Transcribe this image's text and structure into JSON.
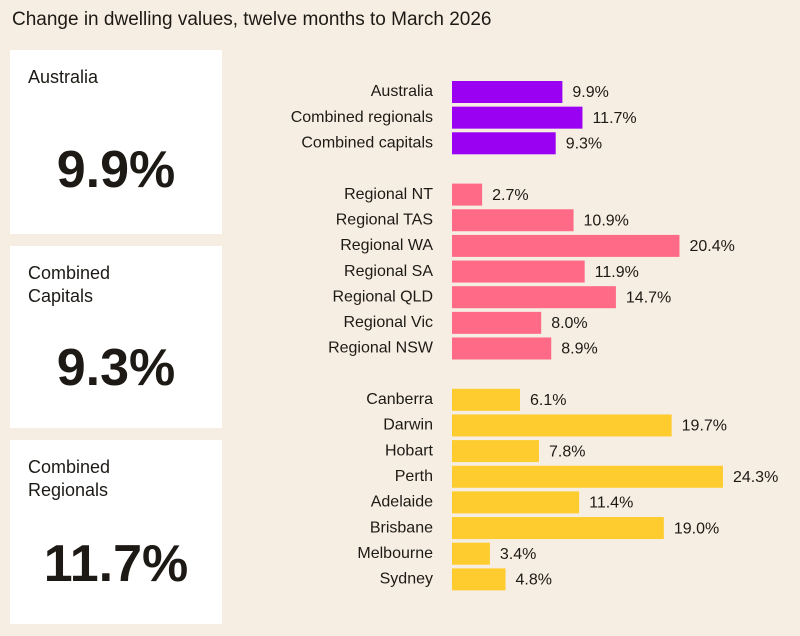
{
  "title": "Change in dwelling values, twelve months to March 2026",
  "cards": [
    {
      "label": "Australia",
      "value": "9.9%"
    },
    {
      "label": "Combined Capitals",
      "value": "9.3%"
    },
    {
      "label": "Combined Regionals",
      "value": "11.7%"
    }
  ],
  "chart_data": {
    "type": "bar",
    "orientation": "horizontal",
    "groups": [
      {
        "color": "#9a00f2",
        "categories": [
          "Australia",
          "Combined regionals",
          "Combined capitals"
        ],
        "values": [
          9.9,
          11.7,
          9.3
        ],
        "value_labels": [
          "9.9%",
          "11.7%",
          "9.3%"
        ]
      },
      {
        "color": "#ff6b86",
        "categories": [
          "Regional NT",
          "Regional TAS",
          "Regional WA",
          "Regional SA",
          "Regional QLD",
          "Regional Vic",
          "Regional NSW"
        ],
        "values": [
          2.7,
          10.9,
          20.4,
          11.9,
          14.7,
          8.0,
          8.9
        ],
        "value_labels": [
          "2.7%",
          "10.9%",
          "20.4%",
          "11.9%",
          "14.7%",
          "8.0%",
          "8.9%"
        ]
      },
      {
        "color": "#ffcc2f",
        "categories": [
          "Canberra",
          "Darwin",
          "Hobart",
          "Perth",
          "Adelaide",
          "Brisbane",
          "Melbourne",
          "Sydney"
        ],
        "values": [
          6.1,
          19.7,
          7.8,
          24.3,
          11.4,
          19.0,
          3.4,
          4.8
        ],
        "value_labels": [
          "6.1%",
          "19.7%",
          "7.8%",
          "24.3%",
          "11.4%",
          "19.0%",
          "3.4%",
          "4.8%"
        ]
      }
    ]
  }
}
